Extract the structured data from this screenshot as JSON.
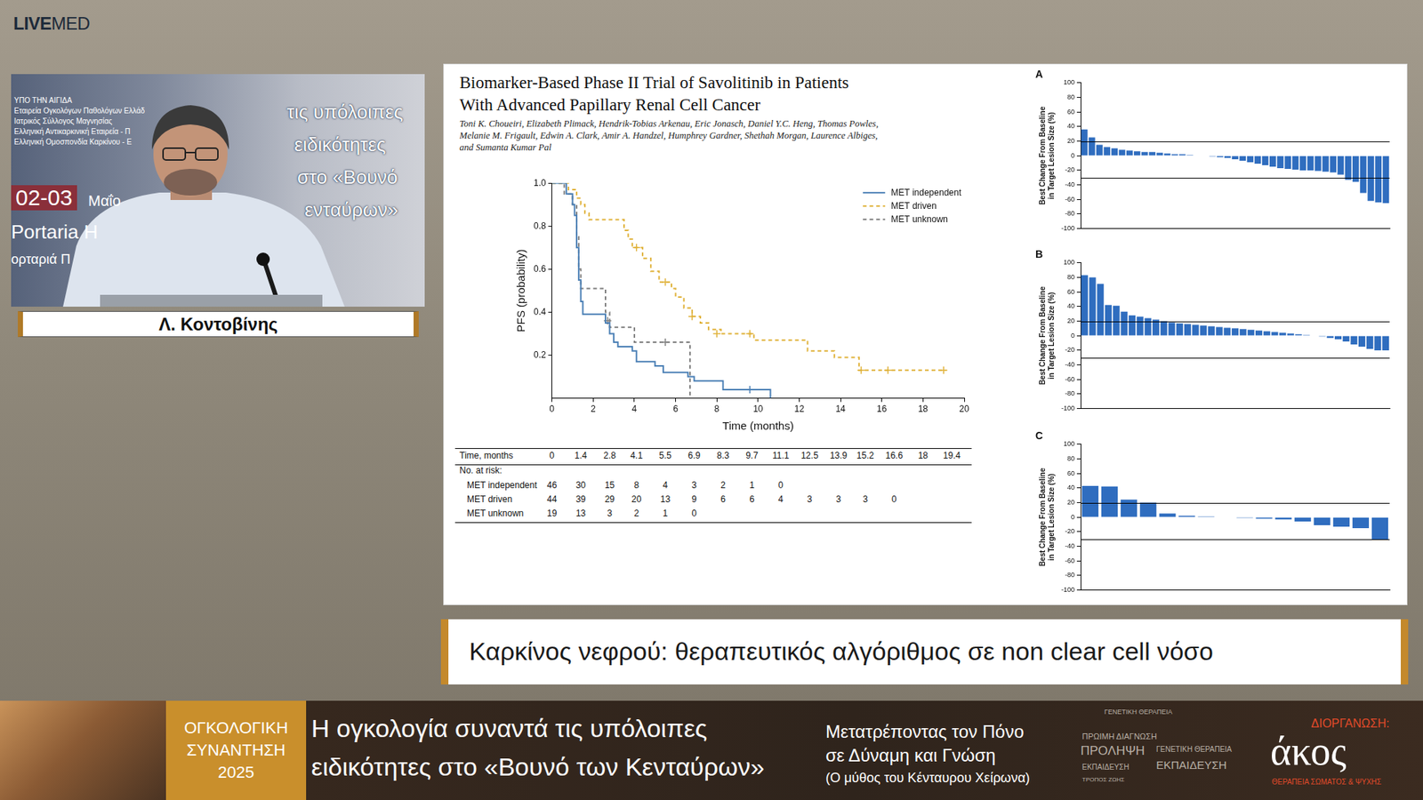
{
  "page": {
    "logo": {
      "strong": "LIVE",
      "light": "MED"
    },
    "speaker": {
      "name": "Λ. Κοντοβίνης",
      "video_texts_left": [
        "ΥΠΟ ΤΗΝ ΑΙΓΙΔΑ",
        "Εταιρεία Ογκολόγων Παθολόγων Ελλάδ",
        "Ιατρικός Σύλλογος Μαγνησίας",
        "Ελληνική Αντικαρκινική Εταιρεία - Π",
        "Ελληνική Ομοσπονδία Καρκίνου - Ε"
      ],
      "video_date": [
        "02-03",
        "Μαΐο"
      ],
      "video_place": [
        "Portaria H",
        "ορταριά Π"
      ],
      "video_texts_right": [
        "τις υπόλοιπες",
        "ειδικότητες",
        "στο «Βουνό",
        "ενταύρων»"
      ]
    },
    "slide": {
      "title": [
        "Biomarker-Based Phase II Trial of Savolitinib in Patients",
        "With Advanced Papillary Renal Cell Cancer"
      ],
      "authors": [
        "Toni K. Choueiri, Elizabeth Plimack, Hendrik-Tobias Arkenau, Eric Jonasch, Daniel Y.C. Heng, Thomas Powles,",
        "Melanie M. Frigault, Edwin A. Clark, Amir A. Handzel, Humphrey Gardner, Shethah Morgan, Laurence Albiges,",
        "and Sumanta Kumar Pal"
      ]
    },
    "caption": "Καρκίνος νεφρού: θεραπευτικός αλγόριθμος σε non clear cell νόσο",
    "banner": {
      "event": [
        "ΟΓΚΟΛΟΓΙΚΗ",
        "ΣΥΝΑΝΤΗΣΗ",
        "2025"
      ],
      "title": [
        "Η ογκολογία συναντά τις υπόλοιπες",
        "ειδικότητες στο «Βουνό των Κενταύρων»"
      ],
      "motto": [
        "Μετατρέποντας τον Πόνο",
        "σε Δύναμη και Γνώση",
        "(Ο μύθος του Κένταυρου Χείρωνα)"
      ],
      "keywords": [
        "ΓΕΝΕΤΙΚΗ ΘΕΡΑΠΕΙΑ",
        "ΠΡΩΙΜΗ ΔΙΑΓΝΩΣΗ",
        "ΠΡΟΛΗΨΗ",
        "ΓΕΝΕΤΙΚΗ ΘΕΡΑΠΕΙΑ",
        "ΕΚΠΑΙΔΕΥΣΗ",
        "ΕΚΠΑΙΔΕΥΣΗ",
        "ΤΡΟΠΟΣ ΖΩΗΣ"
      ],
      "organizer_label": "ΔΙΟΡΓΑΝΩΣΗ:",
      "organizer": "άκος",
      "organizer_tagline": "ΘΕΡΑΠΕΙΑ ΣΩΜΑΤΟΣ & ΨΥΧΗΣ"
    }
  },
  "chart_data": [
    {
      "type": "step",
      "x_label": "Time (months)",
      "y_label": "PFS (probability)",
      "xlim": [
        0,
        20
      ],
      "xticks": [
        0,
        2,
        4,
        6,
        8,
        10,
        12,
        14,
        16,
        18,
        20
      ],
      "ylim": [
        0,
        1
      ],
      "yticks": [
        0.2,
        0.4,
        0.6,
        0.8,
        {
          "value": 1,
          "label": "1.0"
        }
      ],
      "grid": false,
      "legend": "upper right",
      "series": [
        {
          "name": "MET independent",
          "color": "#4a7fb5",
          "line_style": "solid",
          "marker": "cross",
          "x": [
            0,
            0.7,
            1.0,
            1.1,
            1.2,
            1.3,
            1.4,
            1.5,
            2.6,
            2.8,
            3.0,
            3.2,
            3.9,
            4.1,
            5.0,
            5.4,
            6.6,
            6.9,
            8.3,
            10.6
          ],
          "values": [
            1,
            0.95,
            0.9,
            0.85,
            0.7,
            0.55,
            0.45,
            0.39,
            0.35,
            0.3,
            0.26,
            0.24,
            0.22,
            0.17,
            0.15,
            0.12,
            0.1,
            0.08,
            0.04,
            0
          ],
          "censored_x": [
            9.6
          ],
          "censored_values": [
            0.04
          ]
        },
        {
          "name": "MET driven",
          "color": "#e0b23a",
          "line_style": "dashed",
          "marker": "cross",
          "x": [
            0,
            0.8,
            1.2,
            1.4,
            1.6,
            1.8,
            3.5,
            3.7,
            3.9,
            4.4,
            4.8,
            5.2,
            5.8,
            6.0,
            6.4,
            6.8,
            7.2,
            7.6,
            8.2,
            9.8,
            12.4,
            13.7,
            14.9,
            19.1
          ],
          "values": [
            1,
            0.97,
            0.93,
            0.9,
            0.86,
            0.83,
            0.78,
            0.74,
            0.7,
            0.65,
            0.59,
            0.54,
            0.51,
            0.47,
            0.42,
            0.38,
            0.35,
            0.32,
            0.3,
            0.27,
            0.22,
            0.19,
            0.13,
            0.13
          ],
          "censored_x": [
            4.1,
            5.5,
            6.8,
            8.0,
            9.6,
            15.0,
            16.3,
            19.0
          ],
          "censored_values": [
            0.7,
            0.54,
            0.38,
            0.3,
            0.3,
            0.13,
            0.13,
            0.13
          ]
        },
        {
          "name": "MET unknown",
          "color": "#7f7f7f",
          "line_style": "dashed",
          "marker": "cross",
          "x": [
            0,
            0.6,
            1.0,
            1.2,
            1.3,
            1.4,
            2.6,
            2.8,
            4.0,
            6.7
          ],
          "values": [
            1,
            0.95,
            0.9,
            0.75,
            0.6,
            0.51,
            0.4,
            0.33,
            0.26,
            0
          ],
          "censored_x": [
            2.7,
            5.5
          ],
          "censored_values": [
            0.36,
            0.26
          ]
        }
      ],
      "risk_table": {
        "time_label": "Time, months",
        "at_risk_label": "No. at risk:",
        "times": [
          0,
          1.4,
          2.8,
          4.1,
          5.5,
          6.9,
          8.3,
          9.7,
          11.1,
          12.5,
          13.9,
          15.2,
          16.6,
          18.0,
          19.4
        ],
        "rows": [
          {
            "name": "MET independent",
            "values": [
              46,
              30,
              15,
              8,
              4,
              3,
              2,
              1,
              0,
              null,
              null,
              null,
              null,
              null,
              null
            ]
          },
          {
            "name": "MET driven",
            "values": [
              44,
              39,
              29,
              20,
              13,
              9,
              6,
              6,
              4,
              3,
              3,
              3,
              0,
              null,
              null
            ]
          },
          {
            "name": "MET unknown",
            "values": [
              19,
              13,
              3,
              2,
              1,
              0,
              null,
              null,
              null,
              null,
              null,
              null,
              null,
              null,
              null
            ]
          }
        ]
      }
    },
    {
      "type": "bar",
      "title": "A",
      "y_label": [
        "Best Change From Baseline",
        "in Target Lesion Size (%)"
      ],
      "ylim": [
        -100,
        100
      ],
      "yticks": [
        -100,
        -80,
        -60,
        -40,
        -20,
        0,
        20,
        40,
        60,
        80,
        100
      ],
      "values": [
        36,
        25,
        15,
        12,
        10,
        8,
        7,
        6,
        5,
        5,
        4,
        3,
        2,
        2,
        1,
        0,
        0,
        -1,
        -2,
        -3,
        -5,
        -7,
        -9,
        -11,
        -13,
        -15,
        -17,
        -18,
        -19,
        -20,
        -20,
        -21,
        -22,
        -23,
        -26,
        -33,
        -36,
        -51,
        -62,
        -64,
        -65
      ],
      "color": "#2f6dbf",
      "reference_lines": [
        20,
        -30
      ],
      "grid": false,
      "tick_labels": "y"
    },
    {
      "type": "bar",
      "title": "B",
      "y_label": [
        "Best Change From Baseline",
        "in Target Lesion Size (%)"
      ],
      "ylim": [
        -100,
        100
      ],
      "yticks": [
        -100,
        -80,
        -60,
        -40,
        -20,
        0,
        20,
        40,
        60,
        80,
        100
      ],
      "values": [
        83,
        80,
        71,
        42,
        41,
        33,
        28,
        26,
        24,
        22,
        20,
        18,
        17,
        16,
        15,
        14,
        13,
        12,
        11,
        10,
        9,
        8,
        7,
        6,
        5,
        4,
        3,
        2,
        1,
        0,
        -1,
        -3,
        -5,
        -8,
        -12,
        -15,
        -18,
        -20,
        -20
      ],
      "color": "#2f6dbf",
      "reference_lines": [
        20,
        -30
      ],
      "grid": false,
      "tick_labels": "y"
    },
    {
      "type": "bar",
      "title": "C",
      "y_label": [
        "Best Change From Baseline",
        "in Target Lesion Size (%)"
      ],
      "ylim": [
        -100,
        100
      ],
      "yticks": [
        -100,
        -80,
        -60,
        -40,
        -20,
        0,
        20,
        40,
        60,
        80,
        100
      ],
      "values": [
        43,
        42,
        24,
        20,
        5,
        2,
        1,
        0,
        -1,
        -2,
        -3,
        -6,
        -11,
        -13,
        -15,
        -31
      ],
      "color": "#2f6dbf",
      "reference_lines": [
        20,
        -30
      ],
      "grid": false,
      "tick_labels": "y"
    }
  ]
}
